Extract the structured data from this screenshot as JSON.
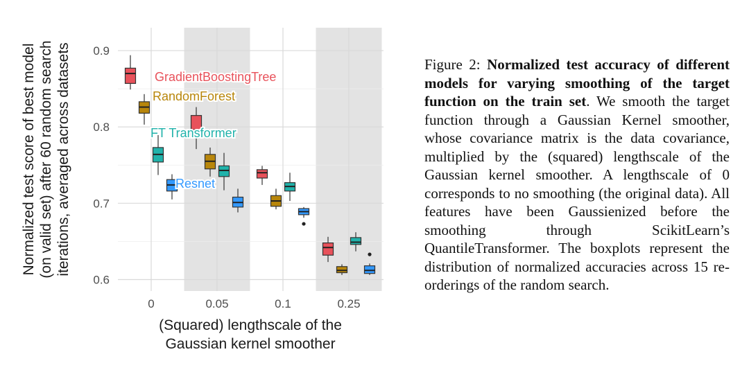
{
  "chart_data": {
    "type": "boxplot",
    "xlabel_lines": [
      "(Squared) lengthscale of the",
      "Gaussian kernel smoother"
    ],
    "ylabel_lines": [
      "Normalized test score of best model",
      "(on valid set) after 60 random search",
      "iterations, averaged across datasets"
    ],
    "categories": [
      "0",
      "0.05",
      "0.1",
      "0.25"
    ],
    "shaded_categories": [
      "0.05",
      "0.25"
    ],
    "ylim": [
      0.585,
      0.93
    ],
    "yticks": [
      0.6,
      0.7,
      0.8,
      0.9
    ],
    "ytick_labels": [
      "0.6",
      "0.7",
      "0.8",
      "0.9"
    ],
    "grid": true,
    "series": [
      {
        "name": "GradientBoostingTree",
        "color": "#E8525B",
        "boxes": [
          {
            "category": "0",
            "whisker_low": 0.849,
            "q1": 0.857,
            "median": 0.87,
            "q3": 0.877,
            "whisker_high": 0.894
          },
          {
            "category": "0.05",
            "whisker_low": 0.771,
            "q1": 0.79,
            "median": 0.796,
            "q3": 0.815,
            "whisker_high": 0.826
          },
          {
            "category": "0.1",
            "whisker_low": 0.724,
            "q1": 0.733,
            "median": 0.74,
            "q3": 0.744,
            "whisker_high": 0.749
          },
          {
            "category": "0.25",
            "whisker_low": 0.623,
            "q1": 0.632,
            "median": 0.642,
            "q3": 0.648,
            "whisker_high": 0.656
          }
        ]
      },
      {
        "name": "RandomForest",
        "color": "#B8860B",
        "boxes": [
          {
            "category": "0",
            "whisker_low": 0.803,
            "q1": 0.818,
            "median": 0.826,
            "q3": 0.833,
            "whisker_high": 0.843
          },
          {
            "category": "0.05",
            "whisker_low": 0.735,
            "q1": 0.745,
            "median": 0.755,
            "q3": 0.764,
            "whisker_high": 0.773
          },
          {
            "category": "0.1",
            "whisker_low": 0.692,
            "q1": 0.696,
            "median": 0.703,
            "q3": 0.71,
            "whisker_high": 0.719
          },
          {
            "category": "0.25",
            "whisker_low": 0.606,
            "q1": 0.609,
            "median": 0.612,
            "q3": 0.617,
            "whisker_high": 0.62
          }
        ]
      },
      {
        "name": "FT Transformer",
        "color": "#20B2AA",
        "boxes": [
          {
            "category": "0",
            "whisker_low": 0.737,
            "q1": 0.754,
            "median": 0.764,
            "q3": 0.773,
            "whisker_high": 0.793
          },
          {
            "category": "0.05",
            "whisker_low": 0.717,
            "q1": 0.735,
            "median": 0.743,
            "q3": 0.749,
            "whisker_high": 0.766
          },
          {
            "category": "0.1",
            "whisker_low": 0.703,
            "q1": 0.716,
            "median": 0.722,
            "q3": 0.727,
            "whisker_high": 0.74
          },
          {
            "category": "0.25",
            "whisker_low": 0.637,
            "q1": 0.646,
            "median": 0.649,
            "q3": 0.655,
            "whisker_high": 0.662
          }
        ]
      },
      {
        "name": "Resnet",
        "color": "#3399FF",
        "boxes": [
          {
            "category": "0",
            "whisker_low": 0.705,
            "q1": 0.716,
            "median": 0.724,
            "q3": 0.731,
            "whisker_high": 0.738
          },
          {
            "category": "0.05",
            "whisker_low": 0.688,
            "q1": 0.695,
            "median": 0.701,
            "q3": 0.708,
            "whisker_high": 0.719
          },
          {
            "category": "0.1",
            "whisker_low": 0.681,
            "q1": 0.685,
            "median": 0.689,
            "q3": 0.693,
            "whisker_high": 0.695,
            "outliers": [
              0.673
            ]
          },
          {
            "category": "0.25",
            "whisker_low": 0.606,
            "q1": 0.608,
            "median": 0.612,
            "q3": 0.618,
            "whisker_high": 0.621,
            "outliers": [
              0.633
            ]
          }
        ]
      }
    ],
    "series_labels": [
      "GradientBoostingTree",
      "RandomForest",
      "FT Transformer",
      "Resnet"
    ]
  },
  "caption": {
    "figure_label": "Figure 2:",
    "bold_text": "Normalized test accuracy of different models for varying smoothing of the target function on the train set",
    "body_text": ". We smooth the target function through a Gaussian Kernel smoother, whose covariance matrix is the data covariance, multiplied by the (squared) lengthscale of the Gaussian kernel smoother. A lengthscale of 0 corresponds to no smoothing (the original data). All features have been Gaussienized before the smoothing through ScikitLearn’s QuantileTransformer. The boxplots represent the distribution of normalized accuracies across 15 re-orderings of the random search."
  }
}
